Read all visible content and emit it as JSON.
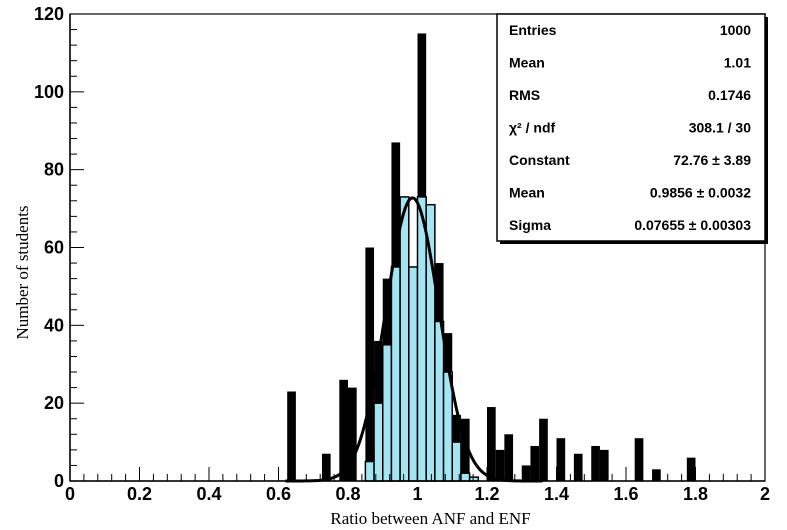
{
  "chart_data": {
    "type": "bar",
    "xlabel": "Ratio between ANF and ENF",
    "ylabel": "Number of students",
    "xlim": [
      0,
      2
    ],
    "ylim": [
      0,
      120
    ],
    "x_ticks": [
      "0",
      "0.2",
      "0.4",
      "0.6",
      "0.8",
      "1",
      "1.2",
      "1.4",
      "1.6",
      "1.8",
      "2"
    ],
    "y_ticks": [
      "0",
      "20",
      "40",
      "60",
      "80",
      "100",
      "120"
    ],
    "bin_width": 0.025,
    "black_histogram": {
      "bin_starts": [
        0.625,
        0.725,
        0.775,
        0.8,
        0.85,
        0.875,
        0.9,
        0.925,
        0.95,
        0.975,
        1.0,
        1.025,
        1.05,
        1.075,
        1.1,
        1.125,
        1.15,
        1.175,
        1.2,
        1.225,
        1.25,
        1.3,
        1.325,
        1.35,
        1.4,
        1.45,
        1.5,
        1.525,
        1.625,
        1.675,
        1.775
      ],
      "values": [
        23,
        7,
        26,
        24,
        60,
        36,
        52,
        87,
        59,
        51,
        115,
        71,
        56,
        38,
        17,
        16,
        0,
        0,
        19,
        8,
        12,
        4,
        9,
        16,
        11,
        7,
        9,
        8,
        11,
        3,
        6
      ]
    },
    "blue_histogram": {
      "bin_starts": [
        0.85,
        0.875,
        0.9,
        0.925,
        0.95,
        0.975,
        1.0,
        1.025,
        1.05,
        1.075,
        1.1,
        1.125,
        1.15
      ],
      "values": [
        5,
        20,
        35,
        55,
        73,
        55,
        73,
        71,
        41,
        28,
        10,
        2,
        1
      ]
    },
    "fit": {
      "type": "gaussian",
      "constant": 72.76,
      "mean": 0.9856,
      "sigma": 0.07655
    },
    "colors": {
      "bars": "#000000",
      "fill": "#a3e5f2",
      "outline": "#000000",
      "fit_curve": "#000000"
    },
    "stats_box": {
      "placement": "top-right",
      "rows": [
        {
          "label": "Entries",
          "value": "1000"
        },
        {
          "label": "Mean",
          "value": "1.01"
        },
        {
          "label": "RMS",
          "value": "0.1746"
        },
        {
          "label": "χ² / ndf",
          "value": "308.1 / 30"
        },
        {
          "label": "Constant",
          "value": "72.76 ± 3.89"
        },
        {
          "label": "Mean",
          "value": "0.9856 ± 0.0032"
        },
        {
          "label": "Sigma",
          "value": "0.07655 ± 0.00303"
        }
      ]
    }
  }
}
